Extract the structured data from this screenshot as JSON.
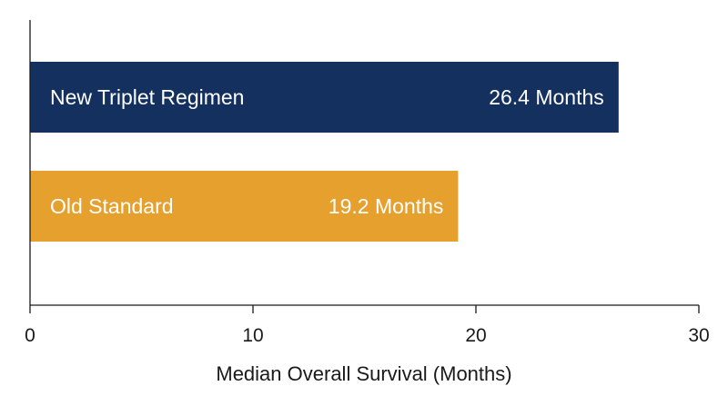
{
  "chart_data": {
    "type": "bar",
    "orientation": "horizontal",
    "categories": [
      "New Triplet Regimen",
      "Old Standard"
    ],
    "values": [
      26.4,
      19.2
    ],
    "value_labels": [
      "26.4 Months",
      "19.2 Months"
    ],
    "colors": [
      "#13305f",
      "#e6a02e"
    ],
    "xlabel": "Median Overall Survival (Months)",
    "ylabel": "",
    "xlim": [
      0,
      30
    ],
    "xticks": [
      0,
      10,
      20,
      30
    ],
    "xtick_labels": [
      "0",
      "10",
      "20",
      "30"
    ],
    "grid": false,
    "legend": "none",
    "category_labels_inside_bars": true
  }
}
